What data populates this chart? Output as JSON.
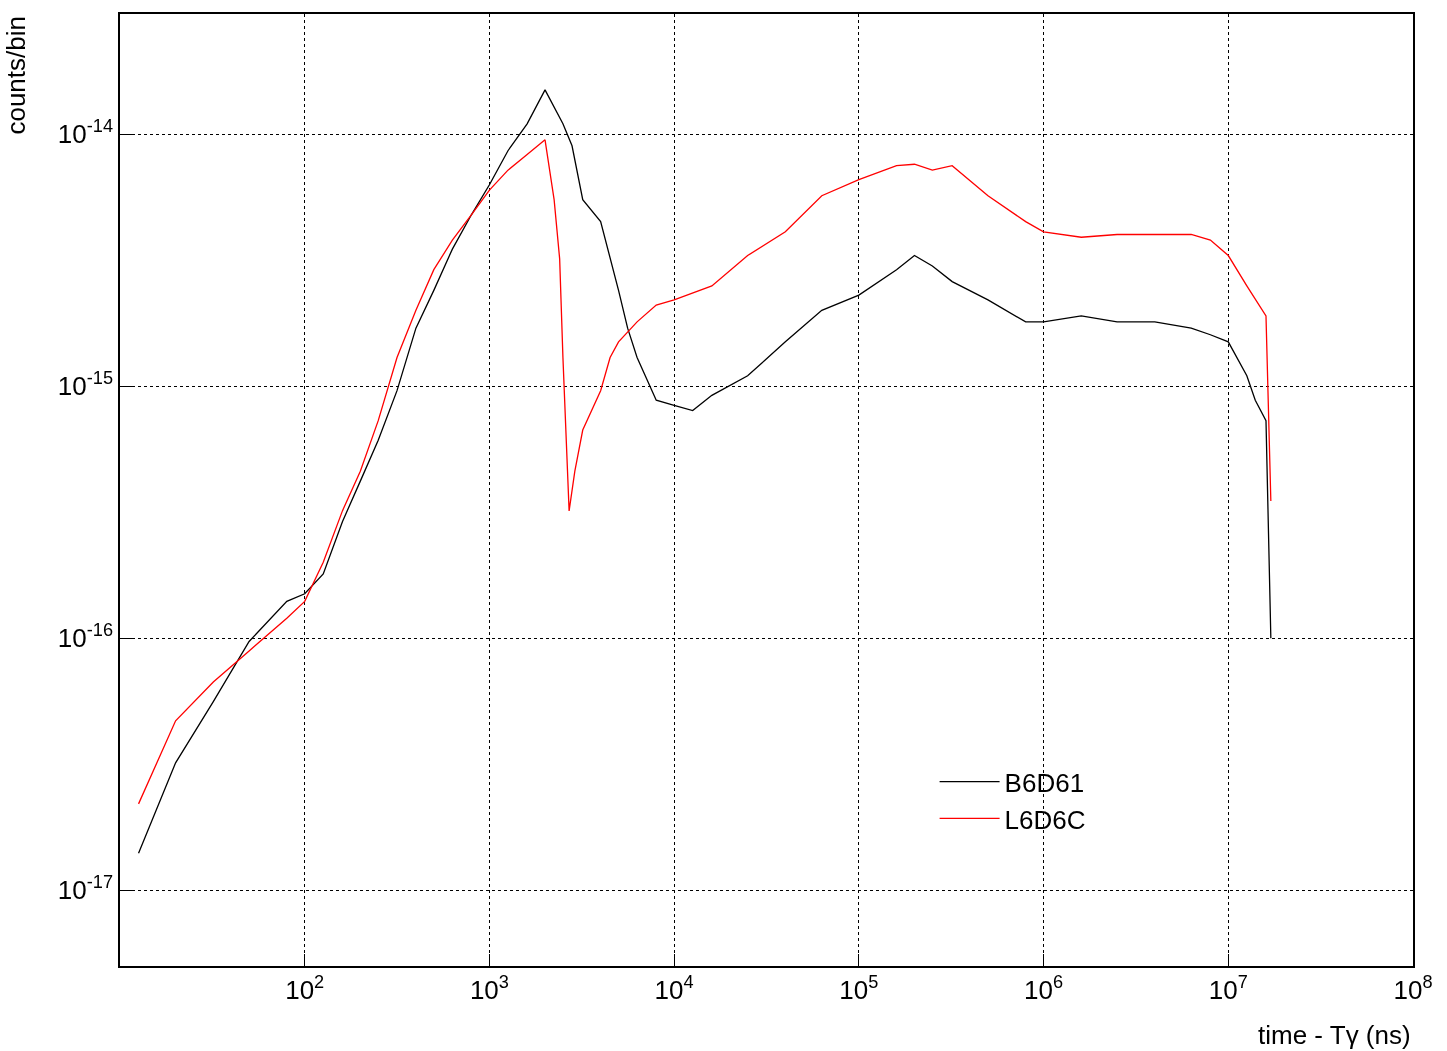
{
  "chart_data": {
    "type": "line",
    "xlabel": "time - Tγ (ns)",
    "ylabel": "counts/bin",
    "log": "xy",
    "grid": true,
    "legend": "bottom right",
    "line_style": "solid",
    "marker": "none",
    "xlim": [
      10,
      100000000
    ],
    "ylim": [
      5e-18,
      3e-14
    ],
    "xticks": [
      {
        "value": 100,
        "label": "10$^{2}$"
      },
      {
        "value": 1000,
        "label": "10$^{3}$"
      },
      {
        "value": 10000,
        "label": "10$^{4}$"
      },
      {
        "value": 100000,
        "label": "10$^{5}$"
      },
      {
        "value": 1000000,
        "label": "10$^{6}$"
      },
      {
        "value": 10000000,
        "label": "10$^{7}$"
      },
      {
        "value": 100000000,
        "label": "10$^{8}$"
      }
    ],
    "yticks": [
      {
        "value": 1e-17,
        "label": "10$^{-17}$"
      },
      {
        "value": 1e-16,
        "label": "10$^{-16}$"
      },
      {
        "value": 1e-15,
        "label": "10$^{-15}$"
      },
      {
        "value": 1e-14,
        "label": "10$^{-14}$"
      }
    ],
    "series": [
      {
        "name": "B6D61",
        "color": "#000000",
        "x": [
          12.6,
          20,
          32,
          50,
          80,
          100,
          126,
          160,
          200,
          250,
          316,
          400,
          500,
          630,
          800,
          1000,
          1260,
          1600,
          2000,
          2500,
          2800,
          3200,
          4000,
          5000,
          5600,
          6300,
          8000,
          10000,
          12600,
          16000,
          25000,
          40000,
          63000,
          100000,
          160000,
          200000,
          250000,
          320000,
          500000,
          800000,
          1000000,
          1600000,
          2500000,
          4000000,
          6300000,
          8000000,
          10000000,
          12600000,
          14000000,
          16000000,
          17000000
        ],
        "values": [
          1.4e-17,
          3.2e-17,
          5.6e-17,
          9.7e-17,
          1.4e-16,
          1.5e-16,
          1.8e-16,
          2.9e-16,
          4.2e-16,
          6.1e-16,
          9.6e-16,
          1.7e-15,
          2.4e-15,
          3.5e-15,
          4.8e-15,
          6.3e-15,
          8.6e-15,
          1.1e-14,
          1.5e-14,
          1.1e-14,
          9e-15,
          5.5e-15,
          4.5e-15,
          2.4e-15,
          1.7e-15,
          1.3e-15,
          8.8e-16,
          8.4e-16,
          8e-16,
          9.2e-16,
          1.1e-15,
          1.5e-15,
          2e-15,
          2.3e-15,
          2.9e-15,
          3.3e-15,
          3e-15,
          2.6e-15,
          2.2e-15,
          1.8e-15,
          1.8e-15,
          1.9e-15,
          1.8e-15,
          1.8e-15,
          1.7e-15,
          1.6e-15,
          1.5e-15,
          1.1e-15,
          8.8e-16,
          7.3e-16,
          1e-16
        ]
      },
      {
        "name": "L6D6C",
        "color": "#ff0000",
        "x": [
          12.6,
          20,
          32,
          50,
          80,
          100,
          126,
          160,
          200,
          250,
          316,
          400,
          500,
          630,
          800,
          1000,
          1260,
          1600,
          2000,
          2240,
          2400,
          2500,
          2700,
          2900,
          3200,
          4000,
          4500,
          5000,
          6300,
          8000,
          10000,
          16000,
          25000,
          40000,
          63000,
          100000,
          160000,
          200000,
          250000,
          320000,
          500000,
          800000,
          1000000,
          1600000,
          2500000,
          4000000,
          6300000,
          8000000,
          10000000,
          12600000,
          16000000,
          17000000
        ],
        "values": [
          2.2e-17,
          4.7e-17,
          6.7e-17,
          8.9e-17,
          1.2e-16,
          1.4e-16,
          2e-16,
          3.2e-16,
          4.6e-16,
          7.3e-16,
          1.3e-15,
          2e-15,
          2.9e-15,
          3.8e-15,
          4.8e-15,
          6e-15,
          7.2e-15,
          8.3e-15,
          9.5e-15,
          5.5e-15,
          3.2e-15,
          1.3e-15,
          3.2e-16,
          4.6e-16,
          6.7e-16,
          9.6e-16,
          1.3e-15,
          1.5e-15,
          1.8e-15,
          2.1e-15,
          2.2e-15,
          2.5e-15,
          3.3e-15,
          4.1e-15,
          5.7e-15,
          6.6e-15,
          7.5e-15,
          7.6e-15,
          7.2e-15,
          7.5e-15,
          5.7e-15,
          4.5e-15,
          4.1e-15,
          3.9e-15,
          4e-15,
          4e-15,
          4e-15,
          3.8e-15,
          3.3e-15,
          2.5e-15,
          1.9e-15,
          3.5e-16
        ]
      }
    ]
  }
}
